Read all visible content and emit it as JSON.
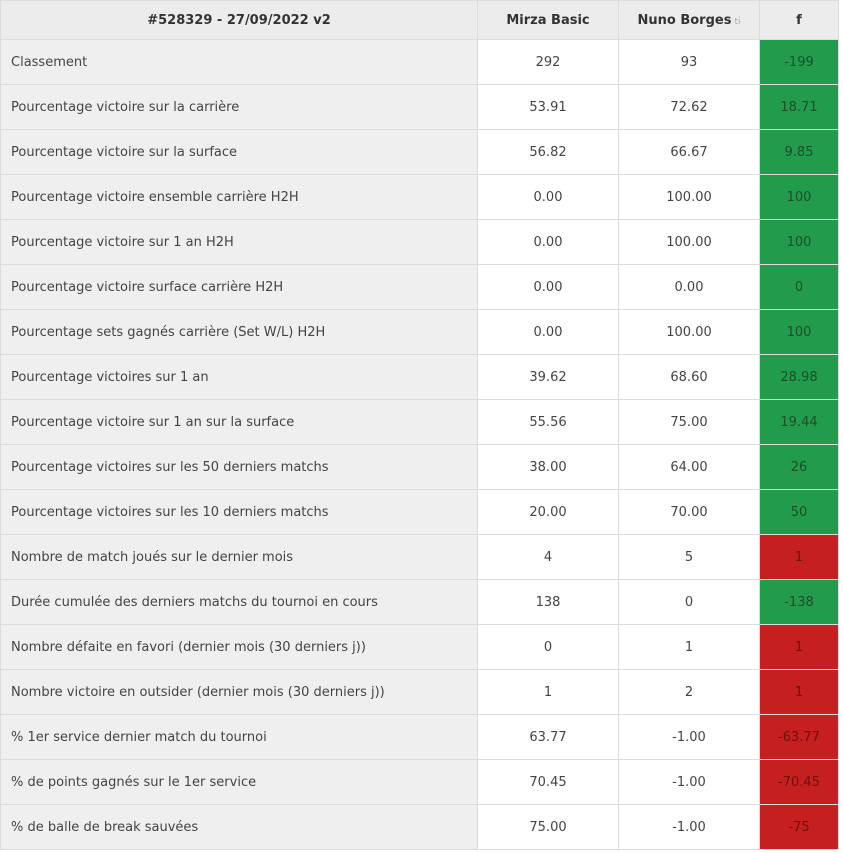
{
  "header": {
    "match_label": "#528329 - 27/09/2022 v2",
    "player1": "Mirza Basic",
    "player2": "Nuno Borges",
    "player2_suffix": "ti",
    "diff_col": "f"
  },
  "colors": {
    "positive": "#239b4c",
    "negative": "#c51f1f"
  },
  "rows": [
    {
      "label": "Classement",
      "p1": "292",
      "p2": "93",
      "diff": "-199",
      "status": "positive"
    },
    {
      "label": "Pourcentage victoire sur la carrière",
      "p1": "53.91",
      "p2": "72.62",
      "diff": "18.71",
      "status": "positive"
    },
    {
      "label": "Pourcentage victoire sur la surface",
      "p1": "56.82",
      "p2": "66.67",
      "diff": "9.85",
      "status": "positive"
    },
    {
      "label": "Pourcentage victoire ensemble carrière H2H",
      "p1": "0.00",
      "p2": "100.00",
      "diff": "100",
      "status": "positive"
    },
    {
      "label": "Pourcentage victoire sur 1 an H2H",
      "p1": "0.00",
      "p2": "100.00",
      "diff": "100",
      "status": "positive"
    },
    {
      "label": "Pourcentage victoire surface carrière H2H",
      "p1": "0.00",
      "p2": "0.00",
      "diff": "0",
      "status": "positive"
    },
    {
      "label": "Pourcentage sets gagnés carrière (Set W/L) H2H",
      "p1": "0.00",
      "p2": "100.00",
      "diff": "100",
      "status": "positive"
    },
    {
      "label": "Pourcentage victoires sur 1 an",
      "p1": "39.62",
      "p2": "68.60",
      "diff": "28.98",
      "status": "positive"
    },
    {
      "label": "Pourcentage victoire sur 1 an sur la surface",
      "p1": "55.56",
      "p2": "75.00",
      "diff": "19.44",
      "status": "positive"
    },
    {
      "label": "Pourcentage victoires sur les 50 derniers matchs",
      "p1": "38.00",
      "p2": "64.00",
      "diff": "26",
      "status": "positive"
    },
    {
      "label": "Pourcentage victoires sur les 10 derniers matchs",
      "p1": "20.00",
      "p2": "70.00",
      "diff": "50",
      "status": "positive"
    },
    {
      "label": "Nombre de match joués sur le dernier mois",
      "p1": "4",
      "p2": "5",
      "diff": "1",
      "status": "negative"
    },
    {
      "label": "Durée cumulée des derniers matchs du tournoi en cours",
      "p1": "138",
      "p2": "0",
      "diff": "-138",
      "status": "positive"
    },
    {
      "label": "Nombre défaite en favori (dernier mois (30 derniers j))",
      "p1": "0",
      "p2": "1",
      "diff": "1",
      "status": "negative"
    },
    {
      "label": "Nombre victoire en outsider (dernier mois (30 derniers j))",
      "p1": "1",
      "p2": "2",
      "diff": "1",
      "status": "negative"
    },
    {
      "label": "% 1er service dernier match du tournoi",
      "p1": "63.77",
      "p2": "-1.00",
      "diff": "-63.77",
      "status": "negative"
    },
    {
      "label": "% de points gagnés sur le 1er service",
      "p1": "70.45",
      "p2": "-1.00",
      "diff": "-70.45",
      "status": "negative"
    },
    {
      "label": "% de balle de break sauvées",
      "p1": "75.00",
      "p2": "-1.00",
      "diff": "-75",
      "status": "negative"
    }
  ]
}
